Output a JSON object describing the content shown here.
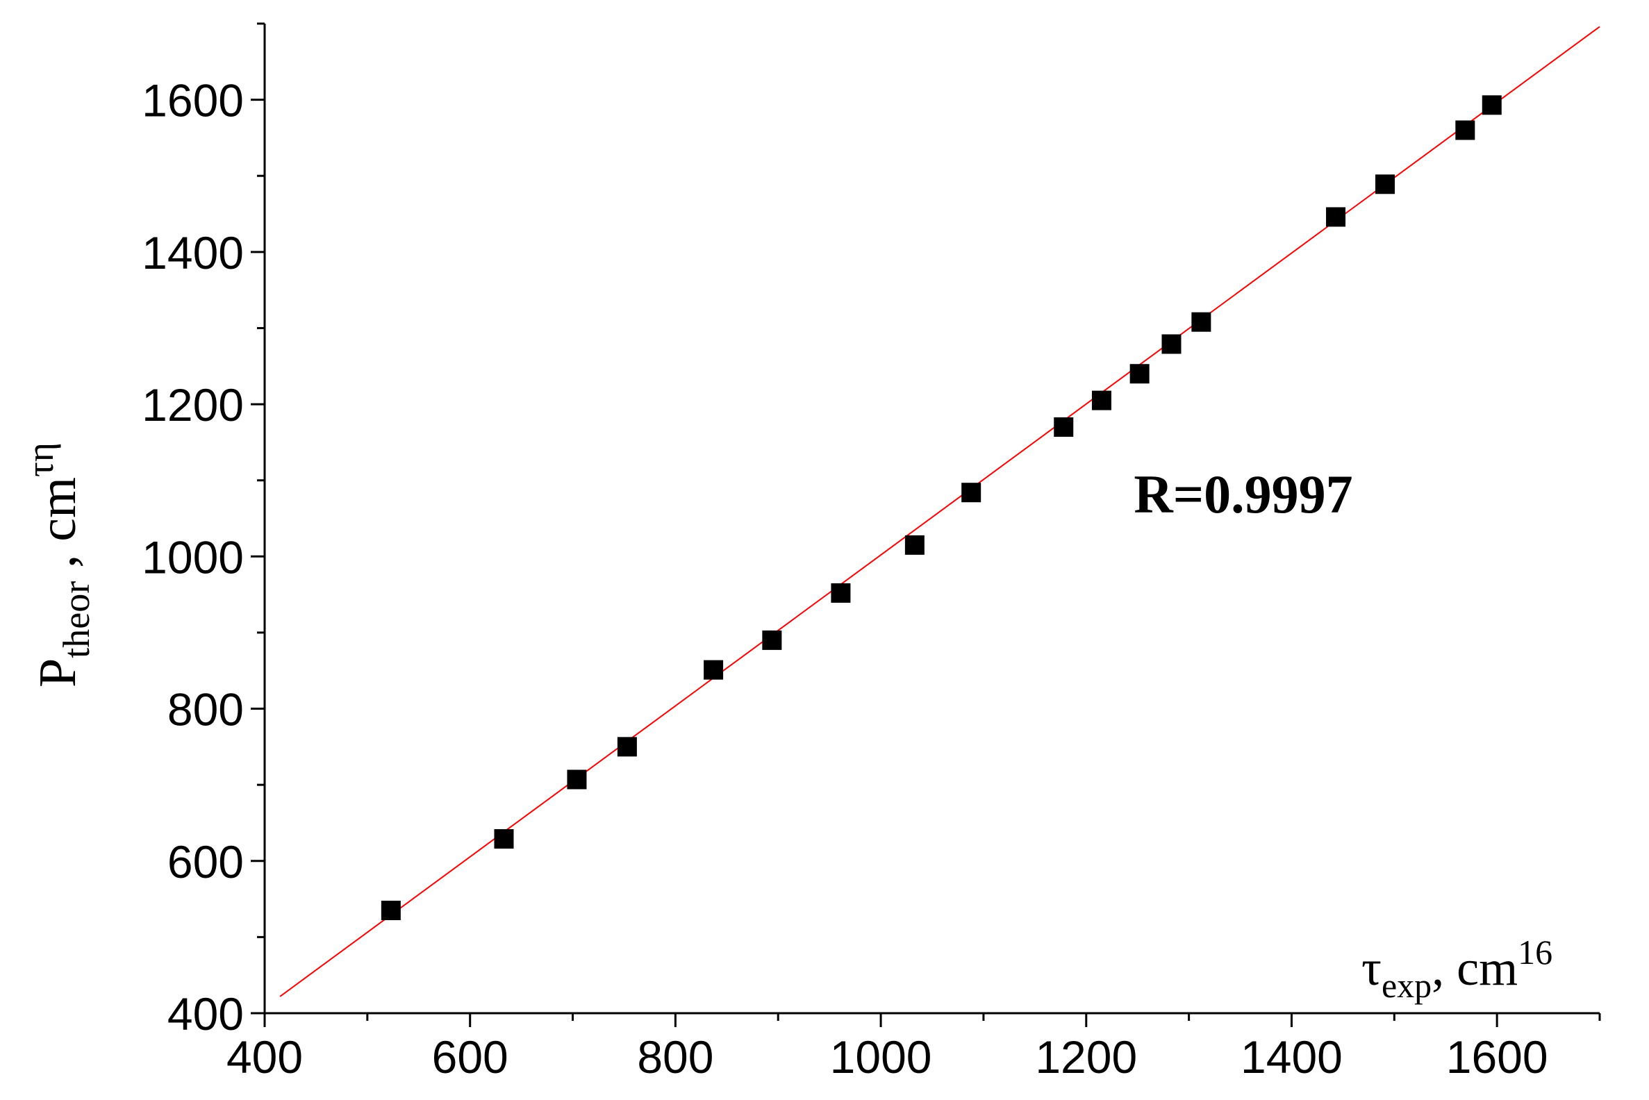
{
  "chart_data": {
    "type": "scatter",
    "x_label": {
      "symbol": "τ",
      "sub": "exp",
      "unit": ", cm",
      "sup": "16"
    },
    "y_label": {
      "symbol": "P",
      "sub": "theor",
      "unit": " , cm",
      "sup": "τη"
    },
    "annotation": "R=0.9997",
    "x": [
      523,
      633,
      704,
      753,
      837,
      894,
      961,
      1033,
      1088,
      1178,
      1215,
      1252,
      1283,
      1312,
      1443,
      1491,
      1569,
      1595
    ],
    "series": [
      {
        "color": "#000000",
        "marker": "square",
        "values": [
          535,
          629,
          707,
          750,
          851,
          890,
          952,
          1015,
          1084,
          1170,
          1205,
          1240,
          1279,
          1308,
          1446,
          1489,
          1560,
          1593
        ]
      }
    ],
    "fit": {
      "color": "#ff0000",
      "x": [
        415,
        1700
      ],
      "values": [
        422,
        1696
      ]
    },
    "xlim": [
      400,
      1700
    ],
    "ylim": [
      400,
      1700
    ],
    "xticks": [
      400,
      600,
      800,
      1000,
      1200,
      1400,
      1600
    ],
    "yticks": [
      400,
      600,
      800,
      1000,
      1200,
      1400,
      1600
    ],
    "grid": false
  }
}
